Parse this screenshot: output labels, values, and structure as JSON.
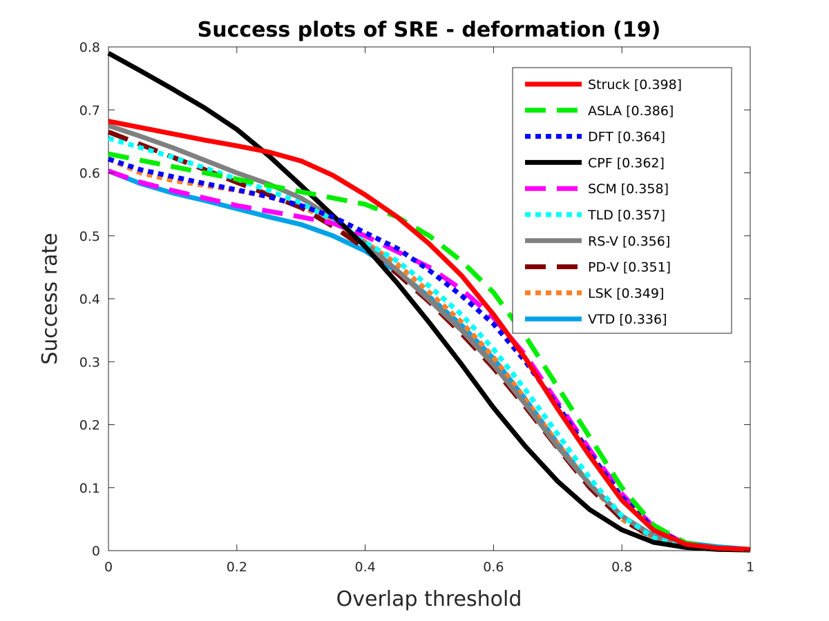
{
  "chart_data": {
    "type": "line",
    "title": "Success plots of SRE - deformation (19)",
    "xlabel": "Overlap threshold",
    "ylabel": "Success rate",
    "xlim": [
      0,
      1
    ],
    "ylim": [
      0,
      0.8
    ],
    "xticks": [
      0,
      0.2,
      0.4,
      0.6,
      0.8,
      1
    ],
    "xtick_labels": [
      "0",
      "0.2",
      "0.4",
      "0.6",
      "0.8",
      "1"
    ],
    "yticks": [
      0,
      0.1,
      0.2,
      0.3,
      0.4,
      0.5,
      0.6,
      0.7,
      0.8
    ],
    "ytick_labels": [
      "0",
      "0.1",
      "0.2",
      "0.3",
      "0.4",
      "0.5",
      "0.6",
      "0.7",
      "0.8"
    ],
    "grid": false,
    "legend_position": "top-right",
    "x": [
      0,
      0.05,
      0.1,
      0.15,
      0.2,
      0.25,
      0.3,
      0.35,
      0.4,
      0.45,
      0.5,
      0.55,
      0.6,
      0.65,
      0.7,
      0.75,
      0.8,
      0.85,
      0.9,
      0.95,
      1
    ],
    "series": [
      {
        "name": "Struck [0.398]",
        "color": "#ff0000",
        "dash": "solid",
        "values": [
          0.682,
          0.672,
          0.662,
          0.652,
          0.643,
          0.633,
          0.619,
          0.596,
          0.565,
          0.53,
          0.487,
          0.437,
          0.375,
          0.305,
          0.225,
          0.15,
          0.08,
          0.032,
          0.01,
          0.004,
          0.002
        ]
      },
      {
        "name": "ASLA [0.386]",
        "color": "#00ee00",
        "dash": "dashed",
        "values": [
          0.63,
          0.62,
          0.61,
          0.6,
          0.59,
          0.58,
          0.57,
          0.56,
          0.55,
          0.53,
          0.5,
          0.46,
          0.41,
          0.34,
          0.26,
          0.18,
          0.1,
          0.04,
          0.012,
          0.004,
          0.002
        ]
      },
      {
        "name": "DFT [0.364]",
        "color": "#0000ff",
        "dash": "dotted",
        "values": [
          0.622,
          0.605,
          0.594,
          0.583,
          0.573,
          0.562,
          0.548,
          0.53,
          0.505,
          0.48,
          0.445,
          0.405,
          0.36,
          0.3,
          0.23,
          0.155,
          0.085,
          0.035,
          0.01,
          0.004,
          0.002
        ]
      },
      {
        "name": "CPF [0.362]",
        "color": "#000000",
        "dash": "solid",
        "values": [
          0.79,
          0.762,
          0.733,
          0.703,
          0.669,
          0.627,
          0.58,
          0.532,
          0.483,
          0.425,
          0.362,
          0.296,
          0.227,
          0.165,
          0.11,
          0.065,
          0.033,
          0.013,
          0.005,
          0.002,
          0.001
        ]
      },
      {
        "name": "SCM [0.358]",
        "color": "#ff00ff",
        "dash": "dashed",
        "values": [
          0.603,
          0.585,
          0.572,
          0.56,
          0.548,
          0.539,
          0.53,
          0.52,
          0.5,
          0.475,
          0.45,
          0.415,
          0.37,
          0.31,
          0.235,
          0.16,
          0.09,
          0.037,
          0.01,
          0.004,
          0.002
        ]
      },
      {
        "name": "TLD [0.357]",
        "color": "#00ffff",
        "dash": "dotted",
        "values": [
          0.655,
          0.64,
          0.625,
          0.608,
          0.59,
          0.572,
          0.552,
          0.525,
          0.49,
          0.46,
          0.42,
          0.375,
          0.32,
          0.255,
          0.185,
          0.115,
          0.055,
          0.02,
          0.006,
          0.003,
          0.002
        ]
      },
      {
        "name": "RS-V [0.356]",
        "color": "#808080",
        "dash": "solid",
        "values": [
          0.675,
          0.658,
          0.64,
          0.62,
          0.6,
          0.582,
          0.56,
          0.528,
          0.488,
          0.445,
          0.398,
          0.35,
          0.295,
          0.232,
          0.165,
          0.105,
          0.055,
          0.022,
          0.007,
          0.003,
          0.002
        ]
      },
      {
        "name": "PD-V [0.351]",
        "color": "#800000",
        "dash": "dashed",
        "values": [
          0.665,
          0.645,
          0.625,
          0.605,
          0.585,
          0.565,
          0.545,
          0.515,
          0.48,
          0.44,
          0.395,
          0.345,
          0.29,
          0.228,
          0.163,
          0.1,
          0.05,
          0.02,
          0.006,
          0.003,
          0.002
        ]
      },
      {
        "name": "LSK [0.349]",
        "color": "#ff7f27",
        "dash": "dotted",
        "values": [
          0.622,
          0.6,
          0.588,
          0.58,
          0.572,
          0.562,
          0.547,
          0.522,
          0.49,
          0.455,
          0.41,
          0.363,
          0.307,
          0.24,
          0.17,
          0.105,
          0.05,
          0.018,
          0.006,
          0.003,
          0.002
        ]
      },
      {
        "name": "VTD [0.336]",
        "color": "#00a2e8",
        "dash": "solid",
        "values": [
          0.603,
          0.583,
          0.568,
          0.556,
          0.543,
          0.53,
          0.518,
          0.5,
          0.476,
          0.443,
          0.403,
          0.358,
          0.305,
          0.24,
          0.17,
          0.105,
          0.055,
          0.023,
          0.012,
          0.006,
          0.002
        ]
      }
    ]
  }
}
